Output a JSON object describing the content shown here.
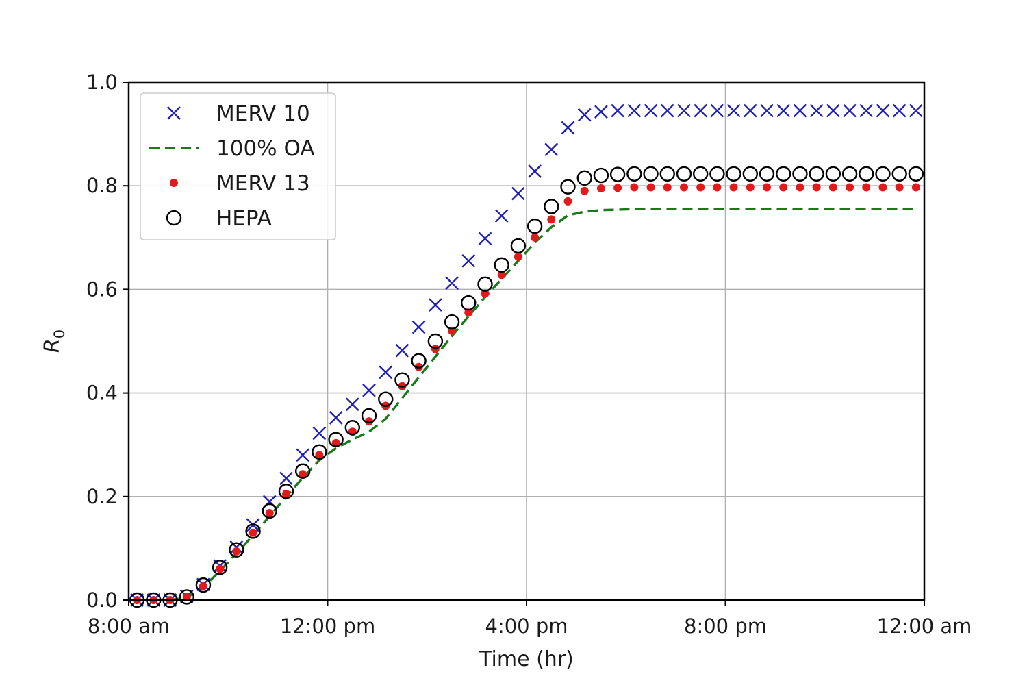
{
  "chart_data": {
    "type": "line",
    "title": "",
    "xlabel": "Time (hr)",
    "ylabel_main": "R",
    "ylabel_sub": "0",
    "xlim": [
      8,
      24
    ],
    "ylim": [
      0,
      1.0
    ],
    "grid": true,
    "legend_position": "top-left",
    "x_ticks": [
      {
        "value": 8,
        "label": "8:00 am"
      },
      {
        "value": 12,
        "label": "12:00 pm"
      },
      {
        "value": 16,
        "label": "4:00 pm"
      },
      {
        "value": 20,
        "label": "8:00 pm"
      },
      {
        "value": 24,
        "label": "12:00 am"
      }
    ],
    "y_ticks": [
      {
        "value": 0.0,
        "label": "0.0"
      },
      {
        "value": 0.2,
        "label": "0.2"
      },
      {
        "value": 0.4,
        "label": "0.4"
      },
      {
        "value": 0.6,
        "label": "0.6"
      },
      {
        "value": 0.8,
        "label": "0.8"
      },
      {
        "value": 1.0,
        "label": "1.0"
      }
    ],
    "x": [
      8.167,
      8.5,
      8.833,
      9.167,
      9.5,
      9.833,
      10.167,
      10.5,
      10.833,
      11.167,
      11.5,
      11.833,
      12.167,
      12.5,
      12.833,
      13.167,
      13.5,
      13.833,
      14.167,
      14.5,
      14.833,
      15.167,
      15.5,
      15.833,
      16.167,
      16.5,
      16.833,
      17.167,
      17.5,
      17.833,
      18.167,
      18.5,
      18.833,
      19.167,
      19.5,
      19.833,
      20.167,
      20.5,
      20.833,
      21.167,
      21.5,
      21.833,
      22.167,
      22.5,
      22.833,
      23.167,
      23.5,
      23.833
    ],
    "series": [
      {
        "name": "MERV 10",
        "marker": "x",
        "color": "#1f1fb4",
        "values": [
          0.0,
          0.0,
          0.0,
          0.007,
          0.03,
          0.066,
          0.102,
          0.145,
          0.19,
          0.235,
          0.28,
          0.322,
          0.352,
          0.378,
          0.405,
          0.44,
          0.482,
          0.527,
          0.57,
          0.612,
          0.655,
          0.698,
          0.742,
          0.785,
          0.828,
          0.87,
          0.912,
          0.937,
          0.943,
          0.945,
          0.945,
          0.945,
          0.945,
          0.945,
          0.945,
          0.945,
          0.945,
          0.945,
          0.945,
          0.945,
          0.945,
          0.945,
          0.945,
          0.945,
          0.945,
          0.945,
          0.945,
          0.945
        ]
      },
      {
        "name": "100% OA",
        "marker": "dashed",
        "color": "#1a7a1a",
        "values": [
          0.0,
          0.0,
          0.0,
          0.005,
          0.025,
          0.056,
          0.09,
          0.125,
          0.162,
          0.2,
          0.236,
          0.27,
          0.293,
          0.31,
          0.325,
          0.35,
          0.39,
          0.43,
          0.47,
          0.51,
          0.548,
          0.585,
          0.62,
          0.655,
          0.69,
          0.72,
          0.743,
          0.75,
          0.753,
          0.754,
          0.755,
          0.755,
          0.755,
          0.755,
          0.755,
          0.755,
          0.755,
          0.755,
          0.755,
          0.755,
          0.755,
          0.755,
          0.755,
          0.755,
          0.755,
          0.755,
          0.755,
          0.755
        ]
      },
      {
        "name": "MERV 13",
        "marker": "dot",
        "color": "#e31a1c",
        "values": [
          0.0,
          0.0,
          0.0,
          0.006,
          0.027,
          0.06,
          0.094,
          0.13,
          0.168,
          0.205,
          0.243,
          0.28,
          0.303,
          0.325,
          0.345,
          0.375,
          0.413,
          0.45,
          0.485,
          0.52,
          0.555,
          0.592,
          0.628,
          0.663,
          0.7,
          0.735,
          0.77,
          0.79,
          0.795,
          0.796,
          0.797,
          0.797,
          0.797,
          0.797,
          0.797,
          0.797,
          0.797,
          0.797,
          0.797,
          0.797,
          0.797,
          0.797,
          0.797,
          0.797,
          0.797,
          0.797,
          0.797,
          0.797
        ]
      },
      {
        "name": "HEPA",
        "marker": "circle",
        "color": "#000000",
        "values": [
          0.0,
          0.0,
          0.0,
          0.006,
          0.029,
          0.063,
          0.097,
          0.133,
          0.172,
          0.21,
          0.249,
          0.286,
          0.31,
          0.333,
          0.356,
          0.388,
          0.425,
          0.462,
          0.5,
          0.537,
          0.574,
          0.61,
          0.647,
          0.684,
          0.722,
          0.76,
          0.798,
          0.815,
          0.82,
          0.822,
          0.823,
          0.823,
          0.823,
          0.823,
          0.823,
          0.823,
          0.823,
          0.823,
          0.823,
          0.823,
          0.823,
          0.823,
          0.823,
          0.823,
          0.823,
          0.823,
          0.823,
          0.823
        ]
      }
    ]
  }
}
